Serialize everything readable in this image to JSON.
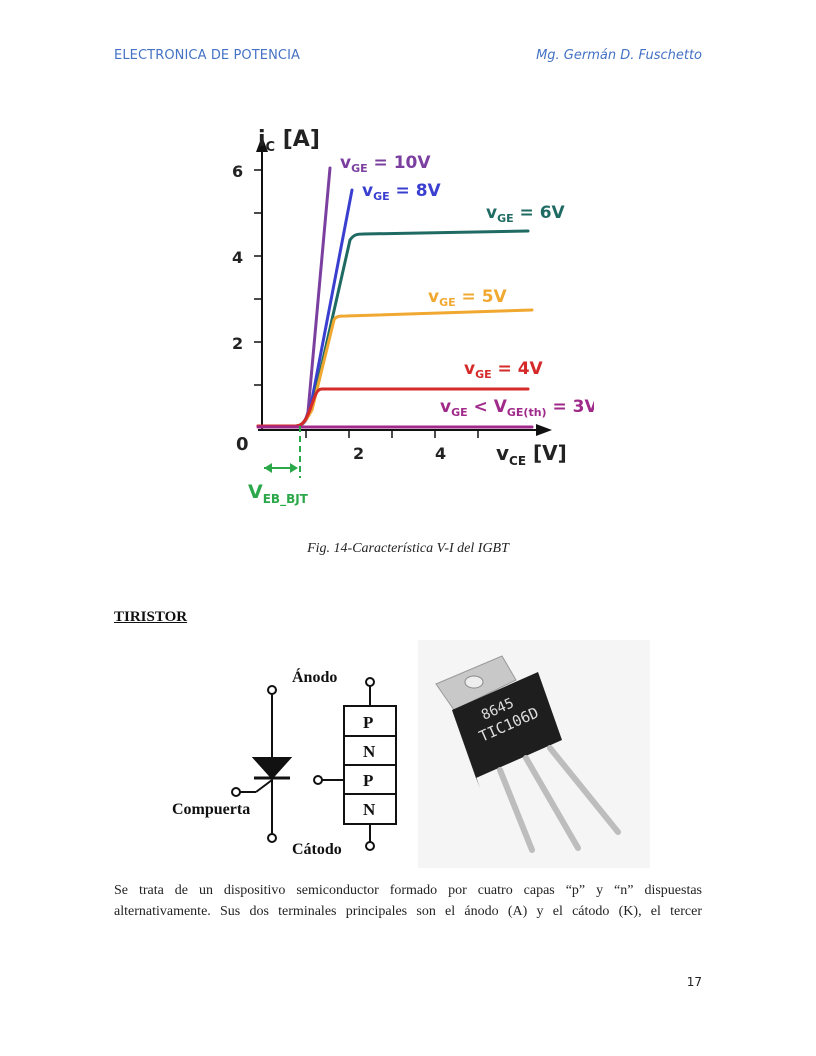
{
  "header": {
    "left": "ELECTRONICA DE POTENCIA",
    "right": "Mg. Germán D. Fuschetto"
  },
  "figure14": {
    "caption": "Fig. 14-Característica V-I del IGBT",
    "y_axis_label": "i",
    "y_axis_sub": "C",
    "y_axis_unit": " [A]",
    "x_axis_label": "v",
    "x_axis_sub": "CE",
    "x_axis_unit": " [V]",
    "origin_label": "0",
    "y_ticks": [
      "2",
      "4",
      "6"
    ],
    "x_ticks": [
      "2",
      "4"
    ],
    "threshold_label": "V",
    "threshold_sub": "EB_BJT",
    "curves": [
      {
        "label": "v",
        "sub": "GE",
        "suffix": " = 10V",
        "color": "#7b3fa0"
      },
      {
        "label": "v",
        "sub": "GE",
        "suffix": " = 8V",
        "color": "#3a3fd0"
      },
      {
        "label": "v",
        "sub": "GE",
        "suffix": " = 6V",
        "color": "#1f6b63"
      },
      {
        "label": "v",
        "sub": "GE",
        "suffix": " = 5V",
        "color": "#f0a830"
      },
      {
        "label": "v",
        "sub": "GE",
        "suffix": " = 4V",
        "color": "#d42a2a"
      },
      {
        "label": "v",
        "sub": "GE",
        "mid": " < V",
        "sub2": "GE(th)",
        "suffix": " = 3V",
        "color": "#a02a8a"
      }
    ]
  },
  "section": {
    "title": "TIRISTOR"
  },
  "thyristor_figure": {
    "anode_label": "Ánodo",
    "gate_label": "Compuerta",
    "cathode_label": "Cátodo",
    "layers": [
      "P",
      "N",
      "P",
      "N"
    ],
    "package_text_line1": "8645",
    "package_text_line2": "TIC106D"
  },
  "body": {
    "line1": "Se trata de un dispositivo semiconductor formado por cuatro capas “p” y “n” dispuestas",
    "line2": "alternativamente. Sus dos terminales principales son el ánodo (A) y el cátodo (K), el tercer"
  },
  "page_number": "17"
}
